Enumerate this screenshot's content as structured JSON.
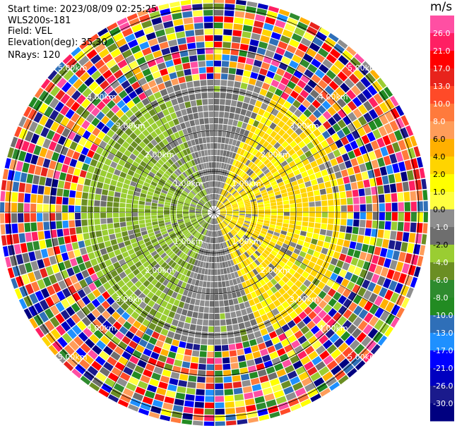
{
  "info": {
    "start_time": "Start time: 2023/08/09 02:25:25",
    "site": "WLS200s-181",
    "field": "Field: VEL",
    "elevation": "Elevation(deg): 35.30",
    "nrays": "NRays: 120"
  },
  "colorbar": {
    "unit": "m/s",
    "ticks": [
      "26.0",
      "21.0",
      "17.0",
      "13.0",
      "10.0",
      "8.0",
      "6.0",
      "4.0",
      "2.0",
      "1.0",
      "0.0",
      "-1.0",
      "-2.0",
      "-4.0",
      "-6.0",
      "-8.0",
      "-10.0",
      "-13.0",
      "-17.0",
      "-21.0",
      "-26.0",
      "-30.0"
    ],
    "colors": [
      "#ff4fa3",
      "#ff1f63",
      "#ff0000",
      "#e8231c",
      "#ff4a28",
      "#ff7a3c",
      "#ff9d5a",
      "#ffb000",
      "#ffd400",
      "#ffff00",
      "#ffff40",
      "#8e8e8e",
      "#6e6e6e",
      "#9acd32",
      "#6b8e23",
      "#2e8b2e",
      "#228b22",
      "#2f6fb8",
      "#1e90ff",
      "#0000ff",
      "#0000c0",
      "#1a1a8c",
      "#000080"
    ]
  },
  "chart_data": {
    "type": "ppi",
    "field": "VEL",
    "units": "m/s",
    "elevation_deg": 35.3,
    "n_rays": 120,
    "ring_labels": [
      "1.00km",
      "2.00km",
      "3.00km",
      "4.00km",
      "5.00km"
    ],
    "max_range_km": 5.5,
    "ring_label_directions": [
      "NW",
      "SW",
      "NE",
      "SE"
    ],
    "sectors": [
      {
        "sector": "west near",
        "color": "#9acd32",
        "approx_velocity": "-2.0"
      },
      {
        "sector": "east near",
        "color": "#ffd400",
        "approx_velocity": "2.0"
      },
      {
        "sector": "north/south near",
        "color": "#8e8e8e",
        "approx_velocity": "0.0"
      },
      {
        "sector": "outer ring",
        "color": "mixed",
        "approx_velocity": "noise"
      }
    ]
  }
}
